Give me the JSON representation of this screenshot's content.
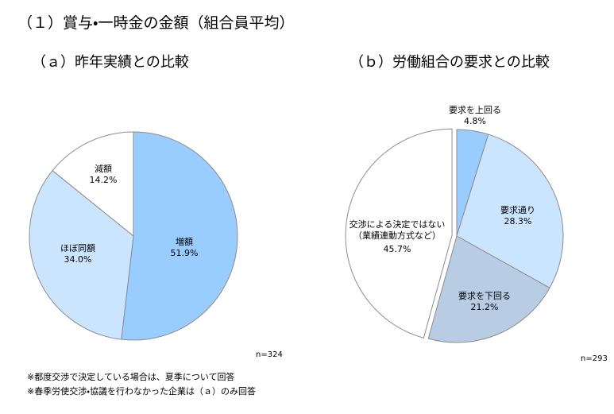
{
  "title": "（１）賞与・一時金の金額（組合員平均）",
  "chart_data": [
    {
      "type": "pie",
      "title": "（ａ）昨年実績との比較",
      "categories": [
        "増額",
        "ほぼ同額",
        "減額"
      ],
      "values": [
        51.9,
        34.0,
        14.2
      ],
      "value_labels": [
        "51.9%",
        "34.0%",
        "14.2%"
      ],
      "colors": [
        "#99ccff",
        "#cce5ff",
        "#ffffff"
      ],
      "annotation": "n=324"
    },
    {
      "type": "pie",
      "title": "（ｂ）労働組合の要求との比較",
      "categories": [
        "要求を上回る",
        "要求通り",
        "要求を下回る",
        "交渉による決定ではない\n（業績連動方式など）"
      ],
      "values": [
        4.8,
        28.3,
        21.2,
        45.7
      ],
      "value_labels": [
        "4.8%",
        "28.3%",
        "21.2%",
        "45.7%"
      ],
      "colors": [
        "#99ccff",
        "#cce5ff",
        "#b8cce4",
        "#ffffff"
      ],
      "annotation": "n=293"
    }
  ],
  "notes": [
    "※都度交渉で決定している場合は、夏季について回答",
    "※春季労使交渉・協議を行わなかった企業は（ａ）のみ回答"
  ]
}
